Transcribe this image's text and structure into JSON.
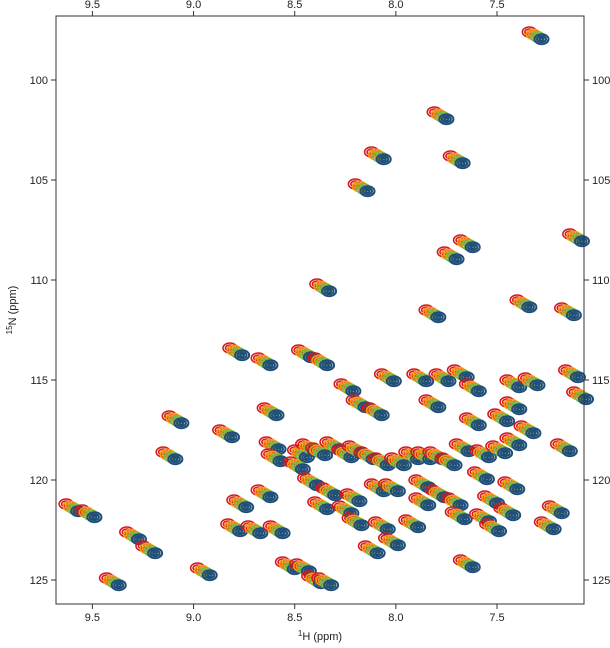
{
  "chart_data": {
    "type": "scatter",
    "title": "",
    "xlabel": {
      "sup": "1",
      "main": "H (ppm)"
    },
    "ylabel": {
      "sup": "15",
      "main": "N (ppm)"
    },
    "xlim": [
      9.68,
      7.07
    ],
    "ylim": [
      126.2,
      96.8
    ],
    "x_reversed": true,
    "y_reversed": true,
    "x_ticks": [
      "9.5",
      "9.0",
      "8.5",
      "8.0",
      "7.5"
    ],
    "x_tick_values": [
      9.5,
      9.0,
      8.5,
      8.0,
      7.5
    ],
    "y_ticks": [
      "100",
      "105",
      "110",
      "115",
      "120",
      "125"
    ],
    "y_tick_values": [
      100,
      105,
      110,
      115,
      120,
      125
    ],
    "grid": false,
    "colors": {
      "red": "#d7191c",
      "orange": "#f59e0b",
      "green": "#7ab648",
      "blue": "#1f4e79"
    },
    "peak_shift": [
      [
        0,
        0
      ],
      [
        -0.02,
        0.12
      ],
      [
        -0.04,
        0.24
      ],
      [
        -0.06,
        0.36
      ]
    ],
    "series": [
      {
        "color_key": "blue",
        "points": [
          [
            7.34,
            97.6
          ],
          [
            7.81,
            101.6
          ],
          [
            8.12,
            103.6
          ],
          [
            7.73,
            103.8
          ],
          [
            8.2,
            105.2
          ],
          [
            7.14,
            107.7
          ],
          [
            7.68,
            108.0
          ],
          [
            7.76,
            108.6
          ],
          [
            7.85,
            111.5
          ],
          [
            7.4,
            111.0
          ],
          [
            7.18,
            111.4
          ],
          [
            8.39,
            110.2
          ],
          [
            8.82,
            113.4
          ],
          [
            8.68,
            113.9
          ],
          [
            8.48,
            113.5
          ],
          [
            8.4,
            113.9
          ],
          [
            8.27,
            115.2
          ],
          [
            8.07,
            114.7
          ],
          [
            7.91,
            114.7
          ],
          [
            7.8,
            114.7
          ],
          [
            7.71,
            114.5
          ],
          [
            7.65,
            115.2
          ],
          [
            7.45,
            115.0
          ],
          [
            7.36,
            114.9
          ],
          [
            7.16,
            114.5
          ],
          [
            7.12,
            115.6
          ],
          [
            8.21,
            116.0
          ],
          [
            8.13,
            116.4
          ],
          [
            7.85,
            116.0
          ],
          [
            7.65,
            116.9
          ],
          [
            7.51,
            116.7
          ],
          [
            7.45,
            116.1
          ],
          [
            8.65,
            116.4
          ],
          [
            9.12,
            116.8
          ],
          [
            8.87,
            117.5
          ],
          [
            8.64,
            118.1
          ],
          [
            8.5,
            118.5
          ],
          [
            8.46,
            118.2
          ],
          [
            8.41,
            118.4
          ],
          [
            8.34,
            118.1
          ],
          [
            8.28,
            118.5
          ],
          [
            8.23,
            118.3
          ],
          [
            8.17,
            118.6
          ],
          [
            8.1,
            118.9
          ],
          [
            8.02,
            118.9
          ],
          [
            7.95,
            118.6
          ],
          [
            7.89,
            118.6
          ],
          [
            7.83,
            118.6
          ],
          [
            7.77,
            118.9
          ],
          [
            7.7,
            118.2
          ],
          [
            7.6,
            118.5
          ],
          [
            7.52,
            118.3
          ],
          [
            7.45,
            117.9
          ],
          [
            7.38,
            117.3
          ],
          [
            7.2,
            118.2
          ],
          [
            9.15,
            118.6
          ],
          [
            8.63,
            118.7
          ],
          [
            8.52,
            119.1
          ],
          [
            8.45,
            119.9
          ],
          [
            8.36,
            120.4
          ],
          [
            8.24,
            120.7
          ],
          [
            8.12,
            120.2
          ],
          [
            8.05,
            120.2
          ],
          [
            7.9,
            120.0
          ],
          [
            7.82,
            120.5
          ],
          [
            7.74,
            120.9
          ],
          [
            7.61,
            119.6
          ],
          [
            7.56,
            120.8
          ],
          [
            7.46,
            120.1
          ],
          [
            7.72,
            121.6
          ],
          [
            7.6,
            121.7
          ],
          [
            7.55,
            122.2
          ],
          [
            7.48,
            121.4
          ],
          [
            7.24,
            121.3
          ],
          [
            7.28,
            122.1
          ],
          [
            8.68,
            120.5
          ],
          [
            8.8,
            121.0
          ],
          [
            8.83,
            122.2
          ],
          [
            8.73,
            122.3
          ],
          [
            8.62,
            122.3
          ],
          [
            8.4,
            121.1
          ],
          [
            8.28,
            121.3
          ],
          [
            8.23,
            121.9
          ],
          [
            8.1,
            122.1
          ],
          [
            8.05,
            122.9
          ],
          [
            7.95,
            122.0
          ],
          [
            7.9,
            120.9
          ],
          [
            9.63,
            121.2
          ],
          [
            9.55,
            121.5
          ],
          [
            9.33,
            122.6
          ],
          [
            9.25,
            123.3
          ],
          [
            8.98,
            124.4
          ],
          [
            8.56,
            124.1
          ],
          [
            8.49,
            124.2
          ],
          [
            8.43,
            124.8
          ],
          [
            8.38,
            124.9
          ],
          [
            8.15,
            123.3
          ],
          [
            7.68,
            124.0
          ],
          [
            9.43,
            124.9
          ]
        ]
      }
    ]
  }
}
